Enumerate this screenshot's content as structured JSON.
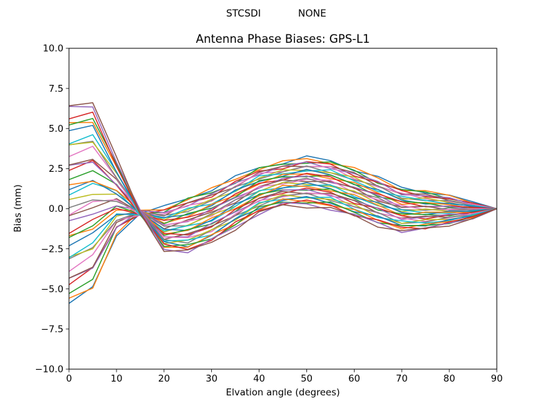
{
  "header": {
    "suptitle_left": "STCSDI",
    "suptitle_right": "NONE"
  },
  "chart_data": {
    "type": "line",
    "suptitle": "STCSDI            NONE",
    "title": "Antenna Phase Biases: GPS-L1",
    "xlabel": "Elvation angle (degrees)",
    "ylabel": "Bias (mm)",
    "xlim": [
      0,
      90
    ],
    "ylim": [
      -10,
      10
    ],
    "grid": false,
    "legend": null,
    "background": "#ffffff",
    "axis_color": "#000000",
    "xticks": [
      0,
      10,
      20,
      30,
      40,
      50,
      60,
      70,
      80,
      90
    ],
    "xtick_labels": [
      "0",
      "10",
      "20",
      "30",
      "40",
      "50",
      "60",
      "70",
      "80",
      "90"
    ],
    "yticks": [
      10,
      7.5,
      5,
      2.5,
      0,
      -2.5,
      -5,
      -7.5,
      -10
    ],
    "ytick_labels": [
      "10.0",
      "7.5",
      "5.0",
      "2.5",
      "0.0",
      "−2.5",
      "−5.0",
      "−7.5",
      "−10.0"
    ],
    "x": [
      0,
      5,
      10,
      15,
      20,
      25,
      30,
      35,
      40,
      45,
      50,
      55,
      60,
      65,
      70,
      75,
      80,
      85,
      90
    ],
    "series_count": 36,
    "envelope": {
      "lo": [
        -5.9,
        -5.0,
        -3.9,
        -3.5,
        -3.4,
        -2.9,
        -2.1,
        -1.2,
        -0.3,
        0.2,
        0.2,
        0.0,
        -0.5,
        -1.0,
        -1.4,
        -1.3,
        -1.0,
        -0.6,
        0.0
      ],
      "hi": [
        6.5,
        6.7,
        5.4,
        3.0,
        0.9,
        0.9,
        1.2,
        1.9,
        2.6,
        2.9,
        3.15,
        3.0,
        2.5,
        1.9,
        1.3,
        1.1,
        0.8,
        0.4,
        0.0
      ],
      "order_mix": [
        0,
        0,
        0.25,
        0.5,
        0.8,
        0.95,
        1,
        1,
        1,
        1,
        1,
        1,
        1,
        1,
        1,
        1,
        1,
        1,
        1
      ]
    },
    "series_model": {
      "wiggle_amp": 0.16,
      "wiggle_freq": 0.4,
      "wiggle_phase_step": 1.9,
      "t_jitter": 0.015,
      "t_jitter_freq": 4.7
    },
    "colors": [
      "#1f77b4",
      "#ff7f0e",
      "#2ca02c",
      "#d62728",
      "#9467bd",
      "#8c564b",
      "#e377c2",
      "#7f7f7f",
      "#bcbd22",
      "#17becf"
    ],
    "line_width": 1.5
  }
}
